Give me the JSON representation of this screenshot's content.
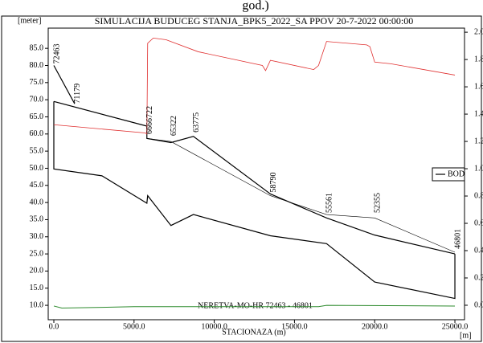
{
  "chart_data": {
    "type": "line",
    "top_text": "god.)",
    "title": "SIMULACIJA BUDUCEG STANJA_BPK5_2022_SA PPOV 20-7-2022 00:00:00",
    "y_unit": "[meter]",
    "x_label": "STACIONAZA (m)",
    "x_unit": "[m]",
    "branch_label": "NERETVA-MO-HR  72463 - 46801",
    "legend": {
      "label": "BOD",
      "position": "right",
      "color": "#000000"
    },
    "xlim": [
      -350,
      25600
    ],
    "ylim": [
      5.8,
      90.9
    ],
    "y2lim": [
      -0.106,
      2.03
    ],
    "xticks": [
      {
        "value": 0,
        "label": "0.0"
      },
      {
        "value": 5000,
        "label": "5000.0"
      },
      {
        "value": 10000,
        "label": "10000.0"
      },
      {
        "value": 15000,
        "label": "15000.0"
      },
      {
        "value": 20000,
        "label": "20000.0"
      },
      {
        "value": 25000,
        "label": "25000.0"
      }
    ],
    "yticks": [
      {
        "value": 10,
        "label": "10.0"
      },
      {
        "value": 15,
        "label": "15.0"
      },
      {
        "value": 20,
        "label": "20.0"
      },
      {
        "value": 25,
        "label": "25.0"
      },
      {
        "value": 30,
        "label": "30.0"
      },
      {
        "value": 35,
        "label": "35.0"
      },
      {
        "value": 40,
        "label": "40.0"
      },
      {
        "value": 45,
        "label": "45.0"
      },
      {
        "value": 50,
        "label": "50.0"
      },
      {
        "value": 55,
        "label": "55.0"
      },
      {
        "value": 60,
        "label": "60.0"
      },
      {
        "value": 65,
        "label": "65.0"
      },
      {
        "value": 70,
        "label": "70.0"
      },
      {
        "value": 75,
        "label": "75.0"
      },
      {
        "value": 80,
        "label": "80.0"
      },
      {
        "value": 85,
        "label": "85.0"
      }
    ],
    "y2ticks": [
      {
        "value": 0,
        "label": "0.0"
      },
      {
        "value": 0.2,
        "label": "0.2"
      },
      {
        "value": 0.4,
        "label": "0.4"
      },
      {
        "value": 0.6,
        "label": "0.6"
      },
      {
        "value": 0.8,
        "label": "0.8"
      },
      {
        "value": 1,
        "label": "1.0"
      },
      {
        "value": 1.2,
        "label": "1.2"
      },
      {
        "value": 1.4,
        "label": "1.4"
      },
      {
        "value": 1.6,
        "label": "1.6"
      },
      {
        "value": 1.8,
        "label": "1.8"
      },
      {
        "value": 2,
        "label": "2.0"
      }
    ],
    "series": [
      {
        "color": "#000000",
        "line_width": 1.2,
        "x": [
          0,
          1300
        ],
        "values": [
          80,
          68.8
        ]
      },
      {
        "color": "#000000",
        "line_width": 1.2,
        "x": [
          0,
          5800,
          5800,
          7300,
          8700,
          13500,
          17000,
          20000,
          25000
        ],
        "values": [
          69.5,
          62.3,
          58.7,
          57.5,
          59.3,
          42.5,
          35.5,
          30.5,
          25
        ]
      },
      {
        "color": "#000000",
        "line_width": 0.6,
        "x": [
          5800,
          7300,
          13500,
          17000,
          20000,
          25000
        ],
        "values": [
          58.7,
          57.8,
          42,
          36.5,
          35.5,
          25.5
        ]
      },
      {
        "color": "#000000",
        "line_width": 1.2,
        "x": [
          0,
          0,
          3000,
          5800,
          5850,
          7300,
          8700,
          13500,
          17000,
          20000,
          25000,
          25000
        ],
        "values": [
          69.5,
          49.8,
          47.8,
          39.8,
          42,
          33.3,
          36.5,
          30.3,
          28,
          16.8,
          12,
          25
        ]
      },
      {
        "color": "#e03030",
        "line_width": 0.8,
        "x": [
          0,
          5700,
          5800,
          5850,
          6200,
          7000,
          9000,
          13000,
          13200,
          13500,
          16200,
          16500,
          17000,
          19500,
          19700,
          20000,
          21000,
          25000
        ],
        "values": [
          62.7,
          60.3,
          60,
          86.5,
          88,
          87.5,
          84,
          80,
          78.5,
          81.5,
          78.8,
          80,
          87,
          86,
          85.5,
          81,
          80.5,
          77.2
        ]
      },
      {
        "color": "#2e8b2e",
        "line_width": 1,
        "x": [
          0,
          500,
          3000,
          5000,
          16500,
          17000,
          25000
        ],
        "values": [
          9.8,
          9.2,
          9.4,
          9.6,
          9.6,
          10,
          9.8
        ]
      }
    ],
    "annotations": [
      {
        "text": "72463",
        "x": 0,
        "y": 80
      },
      {
        "text": "71179",
        "x": 1300,
        "y": 68.5
      },
      {
        "text": "6666722",
        "x": 5800,
        "y": 59.5
      },
      {
        "text": "65322",
        "x": 7300,
        "y": 59
      },
      {
        "text": "63775",
        "x": 8700,
        "y": 60
      },
      {
        "text": "58790",
        "x": 13500,
        "y": 42.5
      },
      {
        "text": "55561",
        "x": 17000,
        "y": 36.5
      },
      {
        "text": "52355",
        "x": 20000,
        "y": 36.5
      },
      {
        "text": "46801",
        "x": 25000,
        "y": 26
      }
    ]
  }
}
